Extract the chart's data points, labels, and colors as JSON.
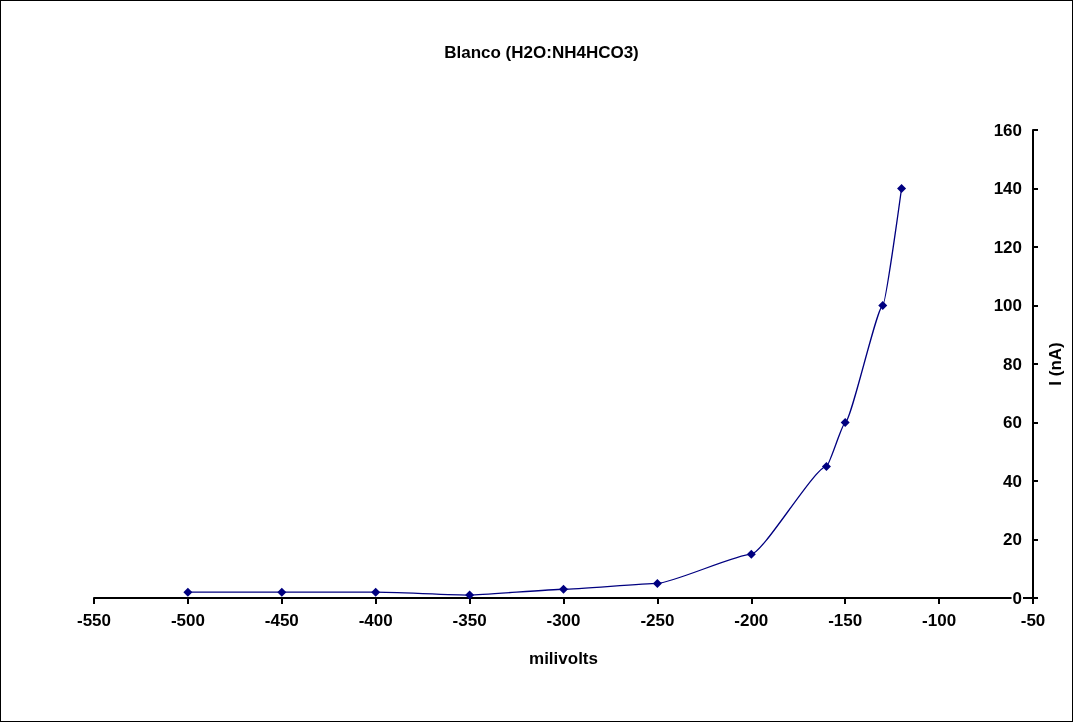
{
  "chart_data": {
    "type": "line",
    "title": "Blanco (H2O:NH4HCO3)",
    "xlabel": "milivolts",
    "ylabel": "I (nA)",
    "x": [
      -500,
      -450,
      -400,
      -350,
      -300,
      -250,
      -200,
      -160,
      -150,
      -130,
      -120
    ],
    "series": [
      {
        "color": "#000080",
        "values": [
          2,
          2,
          2,
          1,
          3,
          5,
          15,
          45,
          60,
          100,
          140
        ]
      }
    ],
    "xlim": [
      -550,
      -50
    ],
    "xticks": [
      -550,
      -500,
      -450,
      -400,
      -350,
      -300,
      -250,
      -200,
      -150,
      -100,
      -50
    ],
    "ylim": [
      0,
      160
    ],
    "yticks": [
      0,
      20,
      40,
      60,
      80,
      100,
      120,
      140,
      160
    ],
    "grid": false,
    "marker": "diamond",
    "line_style": "solid"
  }
}
